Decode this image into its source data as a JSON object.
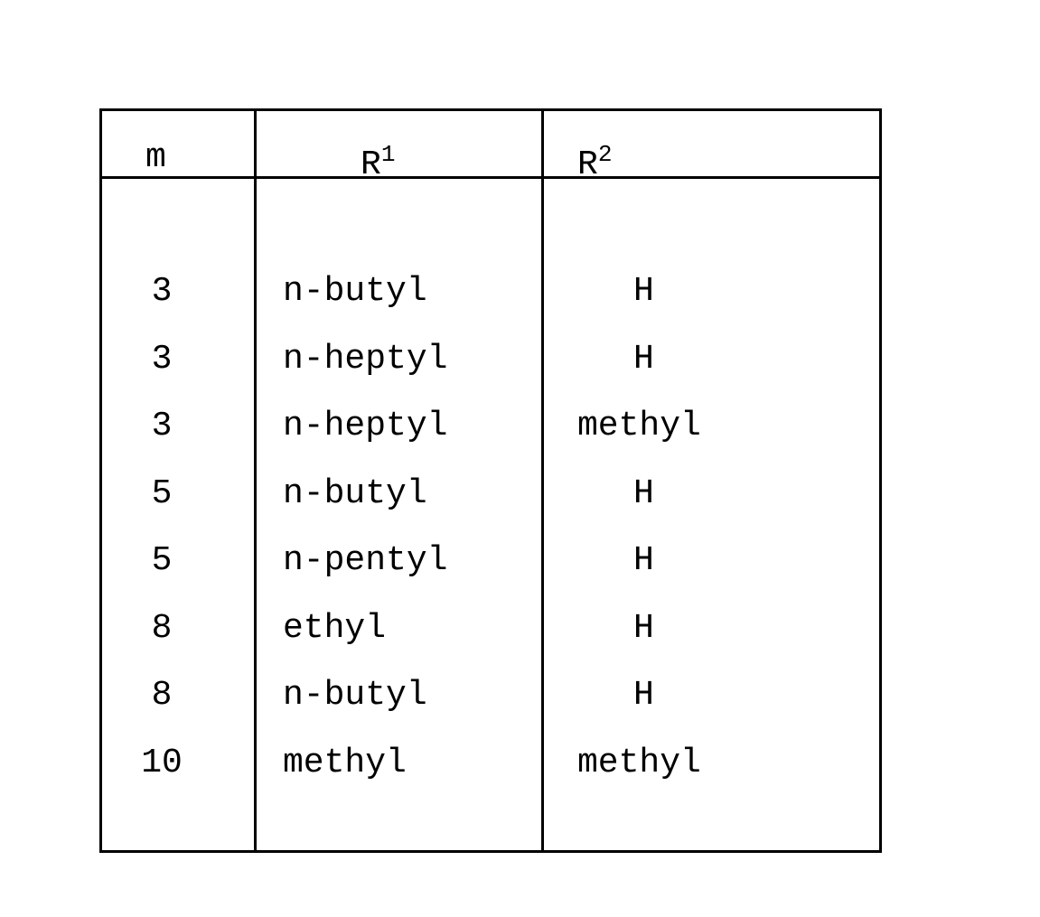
{
  "headers": {
    "m": "m",
    "r1": "R",
    "r1_sup": "1",
    "r2": "R",
    "r2_sup": "2"
  },
  "rows": [
    {
      "m": "3",
      "r1": "n-butyl",
      "r2": "H"
    },
    {
      "m": "3",
      "r1": "n-heptyl",
      "r2": "H"
    },
    {
      "m": "3",
      "r1": "n-heptyl",
      "r2": "methyl"
    },
    {
      "m": "5",
      "r1": "n-butyl",
      "r2": "H"
    },
    {
      "m": "5",
      "r1": "n-pentyl",
      "r2": "H"
    },
    {
      "m": "8",
      "r1": "ethyl",
      "r2": "H"
    },
    {
      "m": "8",
      "r1": "n-butyl",
      "r2": "H"
    },
    {
      "m": "10",
      "r1": "methyl",
      "r2": "methyl"
    }
  ]
}
